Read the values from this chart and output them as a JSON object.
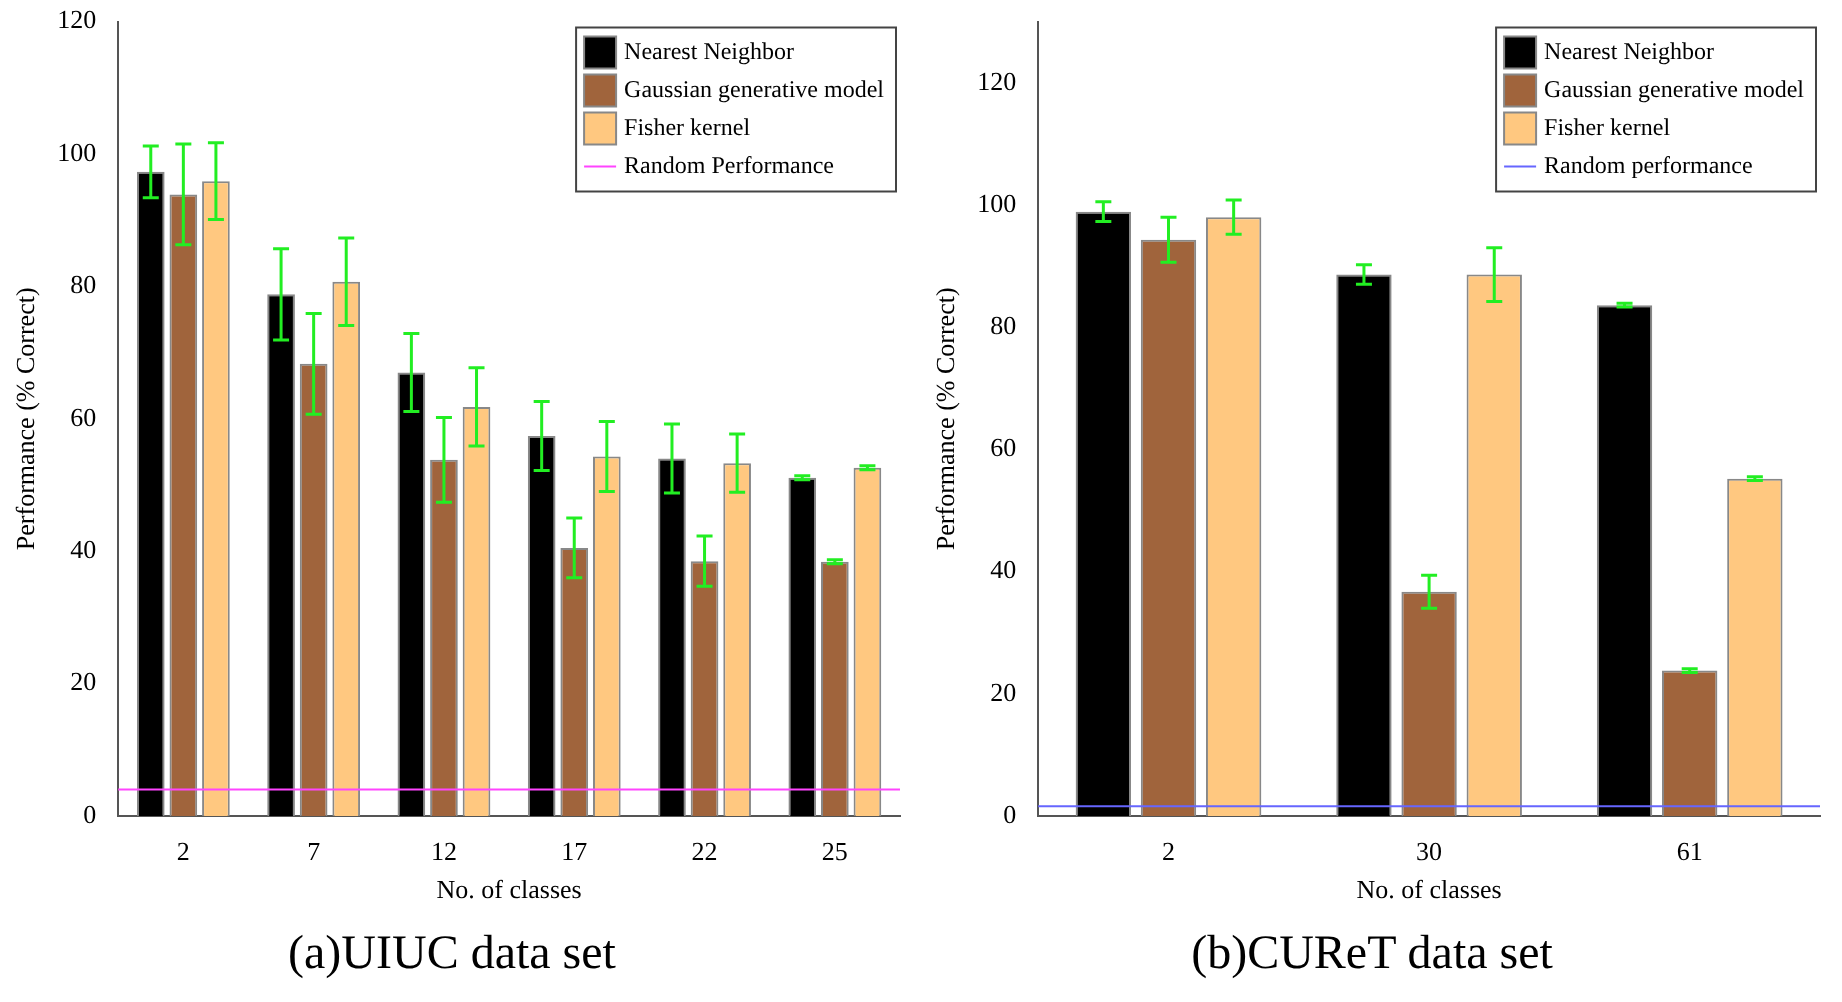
{
  "chart_data": [
    {
      "type": "bar",
      "title": "(a)UIUC data set",
      "xlabel": "No. of classes",
      "ylabel": "Performance (% Correct)",
      "categories": [
        "2",
        "7",
        "12",
        "17",
        "22",
        "25"
      ],
      "ylim": [
        0,
        120
      ],
      "yticks": [
        0,
        20,
        40,
        60,
        80,
        100,
        120
      ],
      "legend": "top right",
      "series": [
        {
          "name": "Nearest Neighbor",
          "color": "#000000",
          "values": [
            97.3,
            78.8,
            67.0,
            57.4,
            54.0,
            51.1
          ],
          "errors": [
            3.9,
            6.9,
            5.9,
            5.2,
            5.2,
            0.3
          ]
        },
        {
          "name": "Gaussian generative model",
          "color": "#a0643c",
          "values": [
            93.9,
            68.3,
            53.8,
            40.5,
            38.5,
            38.4
          ],
          "errors": [
            7.6,
            7.6,
            6.4,
            4.5,
            3.8,
            0.3
          ]
        },
        {
          "name": "Fisher kernel",
          "color": "#ffc880",
          "values": [
            95.9,
            80.7,
            61.8,
            54.3,
            53.3,
            52.6
          ],
          "errors": [
            5.8,
            6.6,
            5.9,
            5.3,
            4.4,
            0.3
          ]
        }
      ],
      "ref_lines": [
        {
          "axis": "y",
          "value": 4,
          "label": "Random Performance",
          "color": "#ff44ff"
        }
      ]
    },
    {
      "type": "bar",
      "title": "(b)CUReT data set",
      "xlabel": "No. of classes",
      "ylabel": "Performance (% Correct)",
      "categories": [
        "2",
        "30",
        "61"
      ],
      "ylim": [
        0,
        130
      ],
      "yticks": [
        0,
        20,
        40,
        60,
        80,
        100,
        120
      ],
      "legend": "top right",
      "series": [
        {
          "name": "Nearest Neighbor",
          "color": "#000000",
          "values": [
            98.9,
            88.6,
            83.6
          ],
          "errors": [
            1.6,
            1.6,
            0.3
          ]
        },
        {
          "name": "Gaussian generative model",
          "color": "#a0643c",
          "values": [
            94.3,
            36.7,
            23.8
          ],
          "errors": [
            3.7,
            2.7,
            0.3
          ]
        },
        {
          "name": "Fisher kernel",
          "color": "#ffc880",
          "values": [
            98.0,
            88.6,
            55.2
          ],
          "errors": [
            2.8,
            4.4,
            0.3
          ]
        }
      ],
      "ref_lines": [
        {
          "axis": "y",
          "value": 1.6,
          "label": "Random performance",
          "color": "#6666ff"
        }
      ]
    }
  ]
}
